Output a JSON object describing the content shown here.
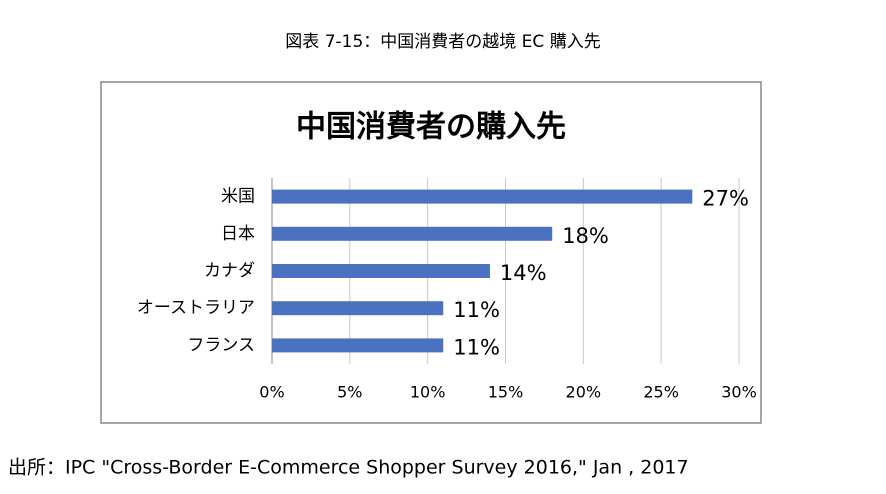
{
  "figure_caption": "図表 7-15：中国消費者の越境 EC 購入先",
  "chart_data": {
    "type": "bar",
    "orientation": "horizontal",
    "title": "中国消費者の購入先",
    "categories": [
      "米国",
      "日本",
      "カナダ",
      "オーストラリア",
      "フランス"
    ],
    "values": [
      27,
      18,
      14,
      11,
      11
    ],
    "value_labels": [
      "27%",
      "18%",
      "14%",
      "11%",
      "11%"
    ],
    "color": "#4a72c0",
    "xlim": [
      0,
      30
    ],
    "xticks": [
      {
        "value": 0,
        "label": "0%"
      },
      {
        "value": 5,
        "label": "5%"
      },
      {
        "value": 10,
        "label": "10%"
      },
      {
        "value": 15,
        "label": "15%"
      },
      {
        "value": 20,
        "label": "20%"
      },
      {
        "value": 25,
        "label": "25%"
      },
      {
        "value": 30,
        "label": "30%"
      }
    ],
    "grid": true
  },
  "source": "出所：IPC \"Cross-Border E-Commerce Shopper Survey 2016,\" Jan , 2017"
}
